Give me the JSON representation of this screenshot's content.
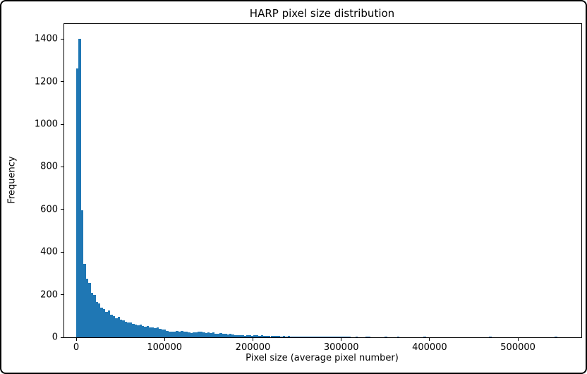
{
  "figure": {
    "background_color": "#ffffff",
    "frame_border_color": "#000000",
    "spine_color": "#000000",
    "text_color": "#000000"
  },
  "chart_data": {
    "type": "bar",
    "subtype": "histogram",
    "title": "HARP pixel size distribution",
    "xlabel": "Pixel size (average pixel number)",
    "ylabel": "Frequency",
    "bar_color": "#1f77b4",
    "legend": "none",
    "grid": false,
    "x_ticks": [
      0,
      100000,
      200000,
      300000,
      400000,
      500000
    ],
    "x_tick_labels": [
      "0",
      "100000",
      "200000",
      "300000",
      "400000",
      "500000"
    ],
    "y_ticks": [
      0,
      200,
      400,
      600,
      800,
      1000,
      1200,
      1400
    ],
    "y_tick_labels": [
      "0",
      "200",
      "400",
      "600",
      "800",
      "1000",
      "1200",
      "1400"
    ],
    "xlim": [
      -13600,
      571800
    ],
    "ylim": [
      0,
      1470
    ],
    "bin_start": 0,
    "bin_width": 2750,
    "frequencies": [
      1260,
      1400,
      595,
      345,
      275,
      255,
      210,
      198,
      165,
      160,
      140,
      132,
      118,
      126,
      106,
      100,
      90,
      96,
      84,
      80,
      74,
      68,
      71,
      64,
      61,
      57,
      60,
      54,
      50,
      52,
      47,
      45,
      44,
      46,
      41,
      38,
      35,
      31,
      28,
      26,
      28,
      30,
      27,
      29,
      25,
      27,
      23,
      21,
      24,
      22,
      25,
      28,
      24,
      21,
      23,
      20,
      22,
      18,
      16,
      19,
      15,
      16,
      14,
      15,
      13,
      10,
      9,
      10,
      9,
      8,
      10,
      9,
      8,
      9,
      10,
      8,
      9,
      8,
      7,
      8,
      6,
      7,
      6,
      7,
      5,
      6,
      5,
      6,
      5,
      4,
      5,
      4,
      5,
      4,
      3,
      4,
      3,
      4,
      3,
      4,
      3,
      2,
      3,
      2,
      2,
      3,
      2,
      2,
      1,
      2,
      2,
      2,
      1,
      0,
      0,
      2,
      0,
      0,
      0,
      2,
      1,
      0,
      0,
      0,
      0,
      0,
      0,
      2,
      0,
      0,
      0,
      0,
      1,
      0,
      0,
      0,
      0,
      0,
      0,
      0,
      0,
      0,
      0,
      1,
      0,
      0,
      0,
      0,
      0,
      0,
      0,
      0,
      0,
      0,
      0,
      0,
      0,
      0,
      0,
      0,
      0,
      0,
      0,
      0,
      0,
      0,
      0,
      0,
      0,
      0,
      1,
      0,
      0,
      0,
      0,
      0,
      0,
      0,
      0,
      0,
      0,
      0,
      0,
      0,
      0,
      0,
      0,
      0,
      0,
      0,
      0,
      0,
      0,
      0,
      0,
      0,
      0,
      1,
      0,
      0
    ]
  }
}
